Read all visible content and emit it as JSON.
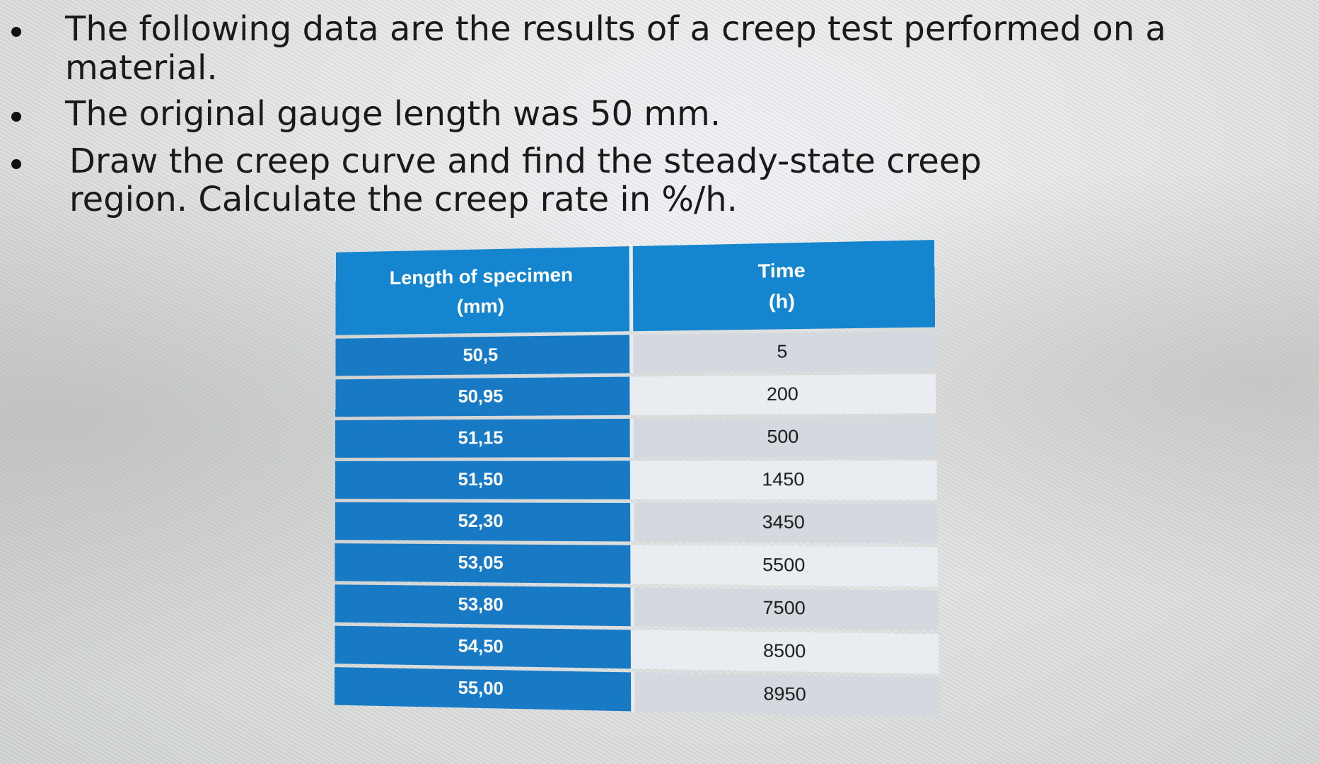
{
  "bullets": [
    "The following data are the results of a creep test performed on a material.",
    "The original gauge length was 50 mm.",
    "Draw the creep curve and find the steady-state creep region. Calculate the creep rate in %/h."
  ],
  "table": {
    "headers": [
      {
        "line1": "Length of specimen",
        "line2": "(mm)"
      },
      {
        "line1": "Time",
        "line2": "(h)"
      }
    ],
    "rows": [
      {
        "length": "50,5",
        "time": "5"
      },
      {
        "length": "50,95",
        "time": "200"
      },
      {
        "length": "51,15",
        "time": "500"
      },
      {
        "length": "51,50",
        "time": "1450"
      },
      {
        "length": "52,30",
        "time": "3450"
      },
      {
        "length": "53,05",
        "time": "5500"
      },
      {
        "length": "53,80",
        "time": "7500"
      },
      {
        "length": "54,50",
        "time": "8500"
      },
      {
        "length": "55,00",
        "time": "8950"
      }
    ]
  },
  "colors": {
    "header_blue": "#1585d0",
    "length_cell_blue": "#1879c5",
    "time_cell_gray": "#d4d9df",
    "time_cell_light": "#e9ecf0",
    "text_dark": "#1a1a1a"
  }
}
